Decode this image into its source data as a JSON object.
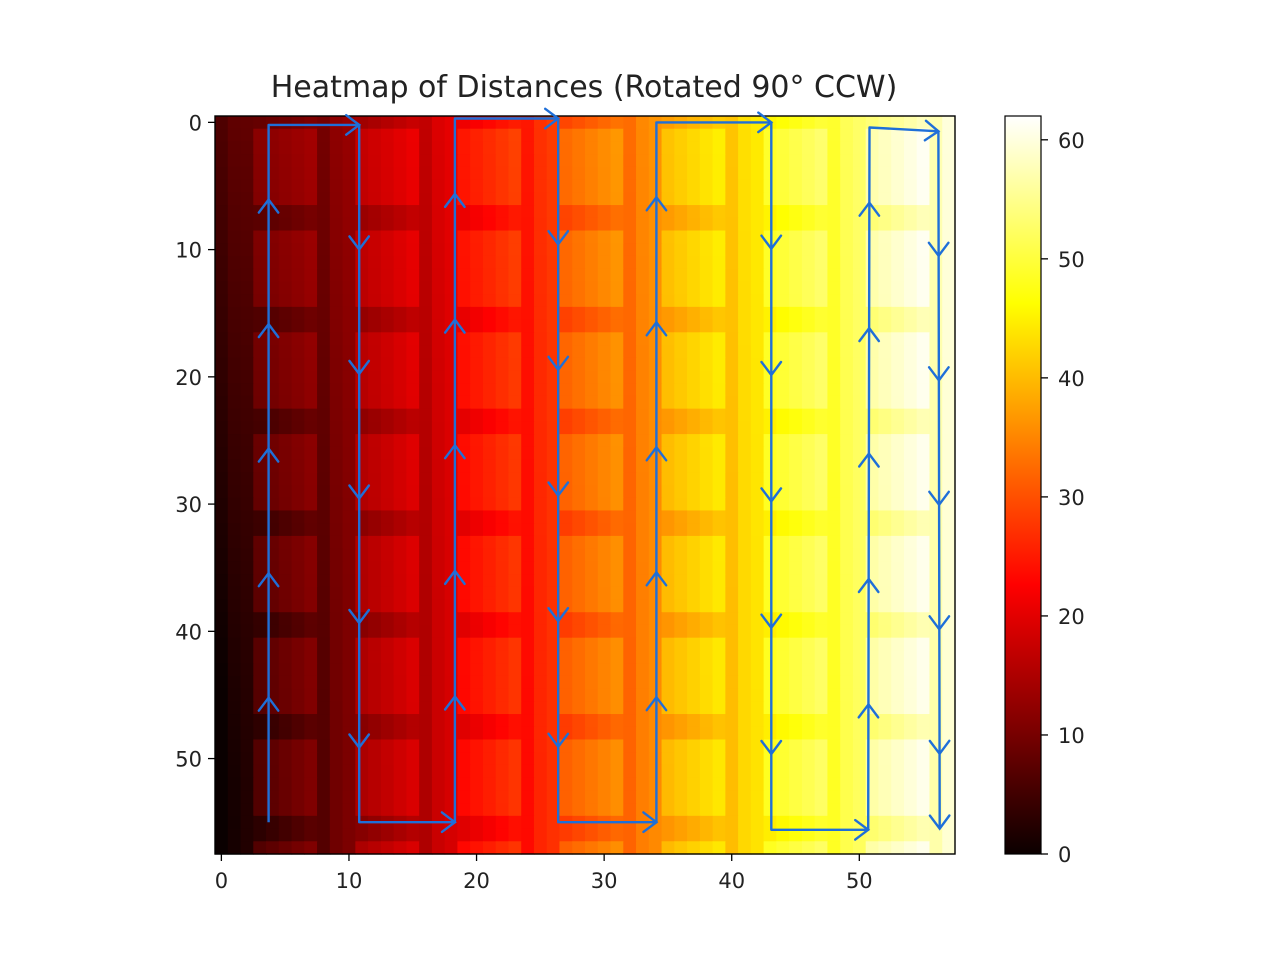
{
  "chart_data": {
    "type": "heatmap",
    "title": "Heatmap of Distances (Rotated 90° CCW)",
    "colormap": "hot",
    "grid_size": [
      58,
      58
    ],
    "x_ticks": [
      "0",
      "10",
      "20",
      "30",
      "40",
      "50"
    ],
    "y_ticks": [
      "0",
      "10",
      "20",
      "30",
      "40",
      "50"
    ],
    "x_range": [
      -0.5,
      57.5
    ],
    "y_range": [
      -0.5,
      57.5
    ],
    "colorbar": {
      "range": [
        0,
        62
      ],
      "ticks": [
        "0",
        "10",
        "20",
        "30",
        "40",
        "50",
        "60"
      ]
    },
    "annotation": {
      "description": "hand-drawn blue serpentine path with arrowheads",
      "color": "#1f6fd8",
      "path": [
        [
          3.7,
          55
        ],
        [
          3.7,
          0.2
        ],
        [
          10.8,
          0.2
        ],
        [
          10.8,
          55
        ],
        [
          18.3,
          55
        ],
        [
          18.3,
          -0.3
        ],
        [
          26.4,
          -0.3
        ],
        [
          26.4,
          55
        ],
        [
          34.1,
          55
        ],
        [
          34.1,
          0
        ],
        [
          43.1,
          0
        ],
        [
          43.1,
          55.6
        ],
        [
          50.7,
          55.6
        ],
        [
          50.8,
          0.4
        ],
        [
          56.2,
          0.7
        ],
        [
          56.3,
          55.5
        ]
      ]
    }
  }
}
